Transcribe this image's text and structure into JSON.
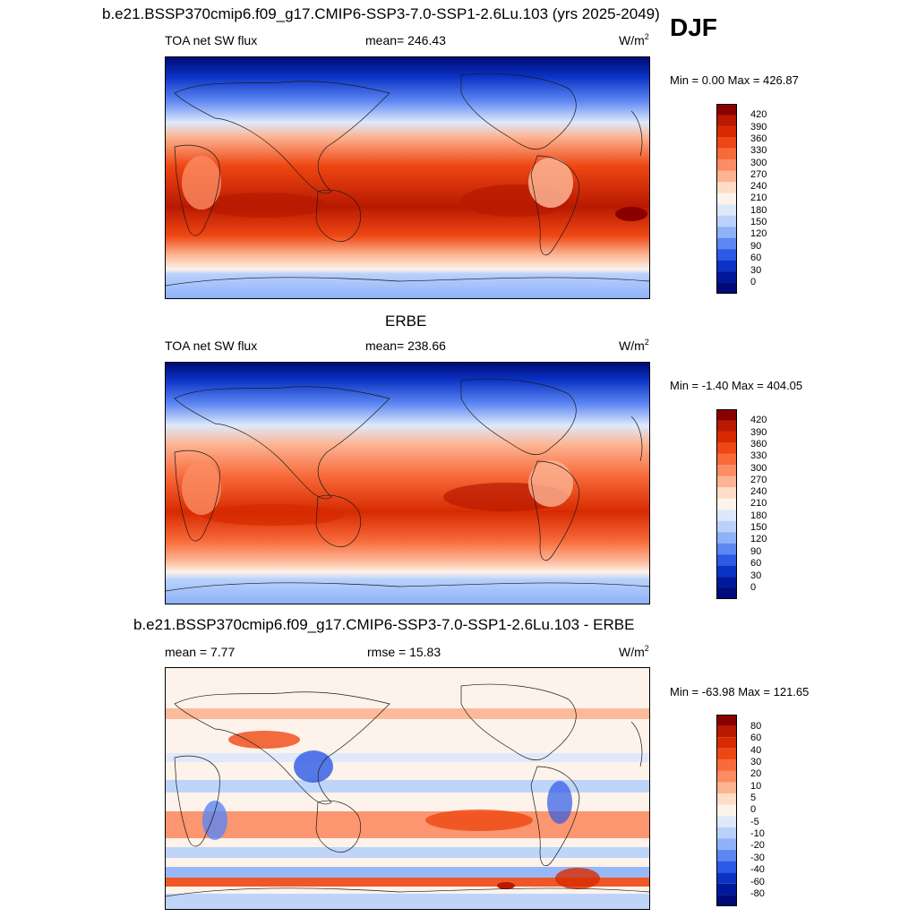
{
  "header": {
    "title": "b.e21.BSSP370cmip6.f09_g17.CMIP6-SSP3-7.0-SSP1-2.6Lu.103 (yrs 2025-2049)",
    "season": "DJF"
  },
  "panels": [
    {
      "title": "",
      "left_label": "TOA net SW flux",
      "center_label": "mean= 246.43",
      "units": "W/m",
      "units_exp": "2",
      "minmax": "Min =   0.00 Max = 426.87",
      "colorbar": {
        "ticks": [
          "420",
          "390",
          "360",
          "330",
          "300",
          "270",
          "240",
          "210",
          "180",
          "150",
          "120",
          "90",
          "60",
          "30",
          "0"
        ],
        "colors": [
          "#8a0000",
          "#b81900",
          "#d72a00",
          "#ef4713",
          "#f86a3a",
          "#fb8c63",
          "#fcb493",
          "#fedcc7",
          "#fdf3ea",
          "#dde9fb",
          "#b9d1fb",
          "#8eb1f8",
          "#5c86f2",
          "#2c59e6",
          "#0a32c4",
          "#00199c",
          "#000a78"
        ]
      }
    },
    {
      "title": "ERBE",
      "left_label": "TOA net SW flux",
      "center_label": "mean= 238.66",
      "units": "W/m",
      "units_exp": "2",
      "minmax": "Min =  -1.40 Max = 404.05",
      "colorbar": {
        "ticks": [
          "420",
          "390",
          "360",
          "330",
          "300",
          "270",
          "240",
          "210",
          "180",
          "150",
          "120",
          "90",
          "60",
          "30",
          "0"
        ],
        "colors": [
          "#8a0000",
          "#b81900",
          "#d72a00",
          "#ef4713",
          "#f86a3a",
          "#fb8c63",
          "#fcb493",
          "#fedcc7",
          "#fdf3ea",
          "#dde9fb",
          "#b9d1fb",
          "#8eb1f8",
          "#5c86f2",
          "#2c59e6",
          "#0a32c4",
          "#00199c",
          "#000a78"
        ]
      }
    },
    {
      "title": "b.e21.BSSP370cmip6.f09_g17.CMIP6-SSP3-7.0-SSP1-2.6Lu.103 - ERBE",
      "left_label": "mean =   7.77",
      "center_label": "rmse =  15.83",
      "units": "W/m",
      "units_exp": "2",
      "minmax": "Min = -63.98 Max = 121.65",
      "colorbar": {
        "ticks": [
          "80",
          "60",
          "40",
          "30",
          "20",
          "10",
          "5",
          "0",
          "-5",
          "-10",
          "-20",
          "-30",
          "-40",
          "-60",
          "-80"
        ],
        "colors": [
          "#8a0000",
          "#b81900",
          "#d72a00",
          "#ef4713",
          "#f86a3a",
          "#fb8c63",
          "#fcb493",
          "#fedcc7",
          "#fdf3ea",
          "#dde9fb",
          "#b9d1fb",
          "#8eb1f8",
          "#5c86f2",
          "#2c59e6",
          "#0a32c4",
          "#00199c",
          "#000a78"
        ]
      }
    }
  ]
}
